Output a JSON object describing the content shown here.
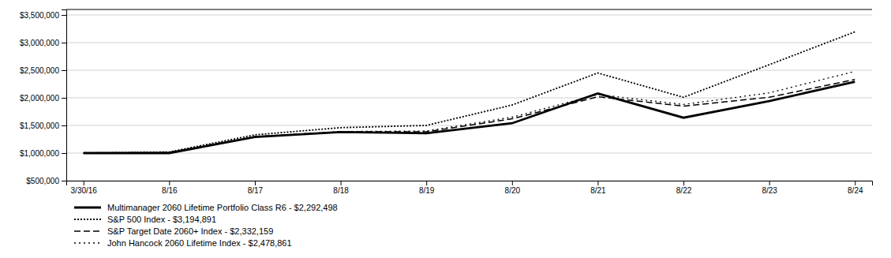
{
  "chart_data": {
    "type": "line",
    "categories": [
      "3/30/16",
      "8/16",
      "8/17",
      "8/18",
      "8/19",
      "8/20",
      "8/21",
      "8/22",
      "8/23",
      "8/24"
    ],
    "series": [
      {
        "name": "Multimanager 2060 Lifetime Portfolio Class R6 - $2,292,498",
        "color": "#000000",
        "line_style": "solid",
        "values": [
          1000000,
          1000000,
          1290000,
          1380000,
          1360000,
          1540000,
          2080000,
          1640000,
          1940000,
          2292498
        ]
      },
      {
        "name": "S&P 500 Index - $3,194,891",
        "color": "#000000",
        "line_style": "dense_dot",
        "values": [
          1000000,
          1020000,
          1330000,
          1460000,
          1500000,
          1870000,
          2450000,
          2010000,
          2600000,
          3194891
        ]
      },
      {
        "name": "S&P Target Date 2060+ Index - $2,332,159",
        "color": "#000000",
        "line_style": "dashed",
        "values": [
          1000000,
          1010000,
          1295000,
          1385000,
          1385000,
          1620000,
          2020000,
          1850000,
          2010000,
          2332159
        ]
      },
      {
        "name": "John Hancock 2060 Lifetime Index - $2,478,861",
        "color": "#000000",
        "line_style": "sparse_dot",
        "values": [
          1000000,
          1010000,
          1300000,
          1390000,
          1400000,
          1650000,
          2060000,
          1880000,
          2090000,
          2478861
        ]
      }
    ],
    "ylim": [
      500000,
      3600000
    ],
    "yticks": [
      {
        "value": 500000,
        "label": "$500,000"
      },
      {
        "value": 1000000,
        "label": "$1,000,000"
      },
      {
        "value": 1500000,
        "label": "$1,500,000"
      },
      {
        "value": 2000000,
        "label": "$2,000,000"
      },
      {
        "value": 2500000,
        "label": "$2,500,000"
      },
      {
        "value": 3000000,
        "label": "$3,000,000"
      },
      {
        "value": 3500000,
        "label": "$3,500,000"
      }
    ],
    "grid": true,
    "legend": "bottom"
  }
}
